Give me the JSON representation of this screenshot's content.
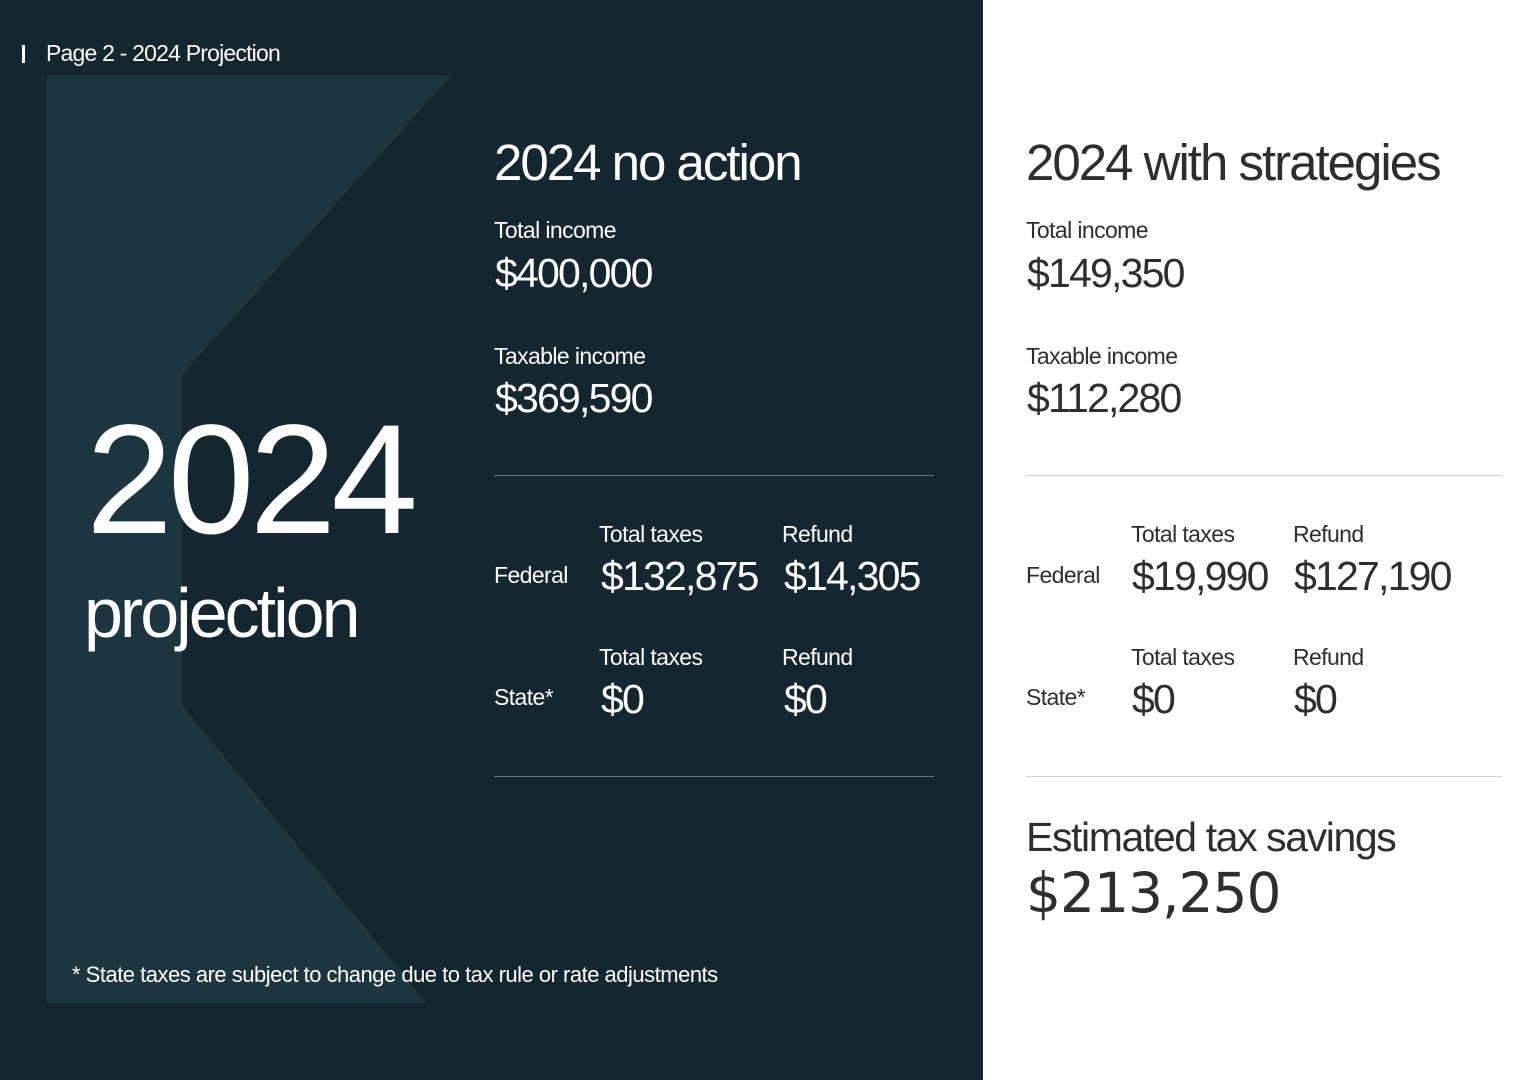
{
  "page_label": "Page 2 - 2024 Projection",
  "hero": {
    "year": "2024",
    "word": "projection"
  },
  "footnote": "* State taxes are subject to change due to tax rule or rate adjustments",
  "no_action": {
    "title": "2024 no action",
    "total_income_label": "Total income",
    "total_income": "$400,000",
    "taxable_income_label": "Taxable income",
    "taxable_income": "$369,590",
    "federal": {
      "label": "Federal",
      "total_taxes_label": "Total taxes",
      "total_taxes": "$132,875",
      "refund_label": "Refund",
      "refund": "$14,305"
    },
    "state": {
      "label": "State*",
      "total_taxes_label": "Total taxes",
      "total_taxes": "$0",
      "refund_label": "Refund",
      "refund": "$0"
    }
  },
  "with_strategies": {
    "title": "2024 with strategies",
    "total_income_label": "Total income",
    "total_income": "$149,350",
    "taxable_income_label": "Taxable income",
    "taxable_income": "$112,280",
    "federal": {
      "label": "Federal",
      "total_taxes_label": "Total taxes",
      "total_taxes": "$19,990",
      "refund_label": "Refund",
      "refund": "$127,190"
    },
    "state": {
      "label": "State*",
      "total_taxes_label": "Total taxes",
      "total_taxes": "$0",
      "refund_label": "Refund",
      "refund": "$0"
    },
    "savings_label": "Estimated tax savings",
    "savings": "$213,250"
  },
  "colors": {
    "dark_panel": "#14262f",
    "chevron": "#1c353e",
    "light_text": "#2e2e2e"
  }
}
